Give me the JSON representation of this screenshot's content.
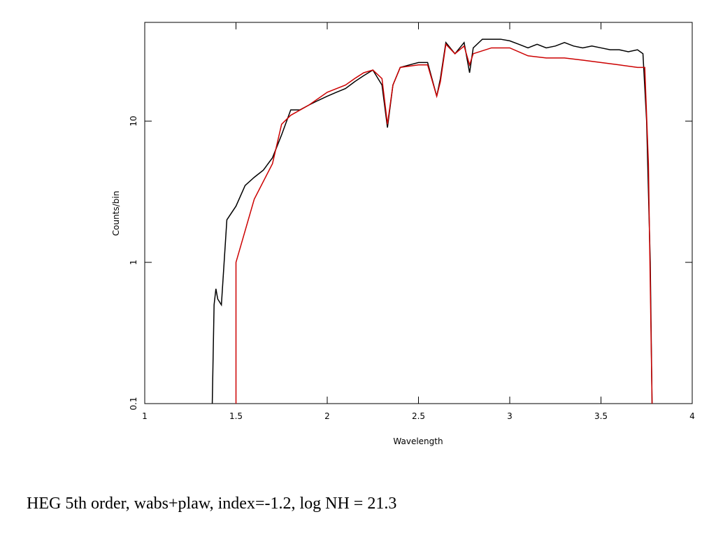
{
  "chart_data": {
    "type": "line",
    "xlabel": "Wavelength",
    "ylabel": "Counts/bin",
    "caption": "HEG 5th order, wabs+plaw, index=-1.2, log NH = 21.3",
    "xlim": [
      1,
      4
    ],
    "xticks": [
      1,
      1.5,
      2,
      2.5,
      3,
      3.5,
      4
    ],
    "ylim": [
      0.1,
      50
    ],
    "yticks": [
      0.1,
      1,
      10
    ],
    "ylog": true,
    "series": [
      {
        "color": "#000000",
        "x": [
          1.37,
          1.38,
          1.39,
          1.4,
          1.42,
          1.45,
          1.5,
          1.55,
          1.6,
          1.65,
          1.7,
          1.75,
          1.8,
          1.85,
          1.9,
          1.95,
          2.0,
          2.05,
          2.1,
          2.15,
          2.2,
          2.25,
          2.3,
          2.33,
          2.36,
          2.4,
          2.45,
          2.5,
          2.55,
          2.6,
          2.62,
          2.65,
          2.7,
          2.75,
          2.78,
          2.8,
          2.85,
          2.9,
          2.95,
          3.0,
          3.05,
          3.1,
          3.15,
          3.2,
          3.25,
          3.3,
          3.35,
          3.4,
          3.45,
          3.5,
          3.55,
          3.6,
          3.65,
          3.7,
          3.73,
          3.75,
          3.77,
          3.78
        ],
        "values": [
          0.1,
          0.5,
          0.65,
          0.55,
          0.5,
          2.0,
          2.5,
          3.5,
          4.0,
          4.5,
          5.5,
          8,
          12,
          12,
          13,
          14,
          15,
          16,
          17,
          19,
          21,
          23,
          18,
          9,
          18,
          24,
          25,
          26,
          26,
          15,
          20,
          36,
          30,
          36,
          22,
          33,
          38,
          38,
          38,
          37,
          35,
          33,
          35,
          33,
          34,
          36,
          34,
          33,
          34,
          33,
          32,
          32,
          31,
          32,
          30,
          10,
          1,
          0.1
        ]
      },
      {
        "color": "#cc0000",
        "x": [
          1.5,
          1.5,
          1.6,
          1.7,
          1.75,
          1.8,
          1.9,
          2.0,
          2.1,
          2.15,
          2.2,
          2.25,
          2.3,
          2.33,
          2.36,
          2.4,
          2.5,
          2.55,
          2.6,
          2.62,
          2.65,
          2.7,
          2.75,
          2.78,
          2.8,
          2.9,
          3.0,
          3.1,
          3.2,
          3.3,
          3.4,
          3.5,
          3.6,
          3.7,
          3.74,
          3.76,
          3.78
        ],
        "values": [
          0.1,
          1.0,
          2.8,
          5.0,
          9.5,
          11,
          13,
          16,
          18,
          20,
          22,
          23,
          20,
          9.5,
          18,
          24,
          25,
          25,
          15,
          19,
          35,
          30,
          34,
          25,
          30,
          33,
          33,
          29,
          28,
          28,
          27,
          26,
          25,
          24,
          24,
          5,
          0.1
        ]
      }
    ]
  }
}
